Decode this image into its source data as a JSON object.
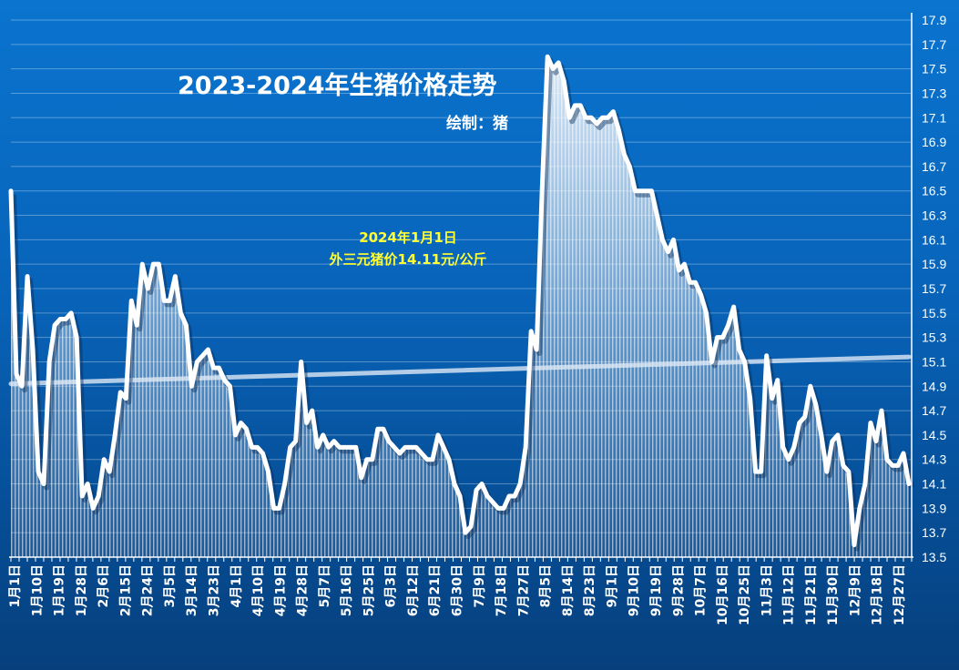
{
  "chart_data": {
    "type": "area",
    "title": "2023-2024年生猪价格走势",
    "subtitle": "绘制：猪",
    "annotation": {
      "line1": "2024年1月1日",
      "line2": "外三元猪价14.11元/公斤"
    },
    "y_ticks": [
      "13.5",
      "13.7",
      "13.9",
      "14.1",
      "14.3",
      "14.5",
      "14.7",
      "14.9",
      "15.1",
      "15.3",
      "15.5",
      "15.7",
      "15.9",
      "16.1",
      "16.3",
      "16.5",
      "16.7",
      "16.9",
      "17.1",
      "17.3",
      "17.5",
      "17.7",
      "17.9"
    ],
    "ylim": [
      13.5,
      17.9
    ],
    "x_ticks": [
      "1月1日",
      "1月10日",
      "1月19日",
      "1月28日",
      "2月6日",
      "2月15日",
      "2月24日",
      "3月5日",
      "3月14日",
      "3月23日",
      "4月1日",
      "4月10日",
      "4月19日",
      "4月28日",
      "5月7日",
      "5月16日",
      "5月25日",
      "6月3日",
      "6月12日",
      "6月21日",
      "6月30日",
      "7月9日",
      "7月18日",
      "7月27日",
      "8月5日",
      "8月14日",
      "8月23日",
      "9月1日",
      "9月10日",
      "9月19日",
      "9月28日",
      "10月7日",
      "10月16日",
      "10月25日",
      "11月3日",
      "11月12日",
      "11月21日",
      "11月30日",
      "12月9日",
      "12月18日",
      "12月27日"
    ],
    "series": [
      {
        "values": [
          16.5,
          15.0,
          14.9,
          15.8,
          15.2,
          14.2,
          14.1,
          15.1,
          15.4,
          15.45,
          15.45,
          15.5,
          15.3,
          14.0,
          14.1,
          13.9,
          14.0,
          14.3,
          14.2,
          14.5,
          14.85,
          14.8,
          15.6,
          15.4,
          15.9,
          15.7,
          15.9,
          15.9,
          15.6,
          15.6,
          15.8,
          15.5,
          15.4,
          14.9,
          15.1,
          15.15,
          15.2,
          15.05,
          15.05,
          14.95,
          14.9,
          14.5,
          14.6,
          14.55,
          14.4,
          14.4,
          14.35,
          14.2,
          13.9,
          13.9,
          14.1,
          14.4,
          14.45,
          15.1,
          14.6,
          14.7,
          14.4,
          14.5,
          14.4,
          14.45,
          14.4,
          14.4,
          14.4,
          14.4,
          14.15,
          14.3,
          14.3,
          14.55,
          14.55,
          14.45,
          14.4,
          14.35,
          14.4,
          14.4,
          14.4,
          14.35,
          14.3,
          14.3,
          14.5,
          14.4,
          14.3,
          14.1,
          14.0,
          13.7,
          13.75,
          14.05,
          14.1,
          14.0,
          13.95,
          13.9,
          13.9,
          14.0,
          14.0,
          14.1,
          14.4,
          15.35,
          15.2,
          16.5,
          17.6,
          17.5,
          17.55,
          17.4,
          17.1,
          17.2,
          17.2,
          17.1,
          17.1,
          17.05,
          17.1,
          17.1,
          17.15,
          17.0,
          16.8,
          16.7,
          16.5,
          16.5,
          16.5,
          16.5,
          16.3,
          16.1,
          16.0,
          16.1,
          15.85,
          15.9,
          15.75,
          15.75,
          15.65,
          15.5,
          15.1,
          15.3,
          15.3,
          15.4,
          15.55,
          15.2,
          15.1,
          14.8,
          14.2,
          14.2,
          15.15,
          14.8,
          14.95,
          14.4,
          14.3,
          14.4,
          14.6,
          14.65,
          14.9,
          14.75,
          14.5,
          14.2,
          14.45,
          14.5,
          14.25,
          14.2,
          13.6,
          13.9,
          14.1,
          14.6,
          14.45,
          14.7,
          14.3,
          14.25,
          14.25,
          14.35,
          14.1
        ]
      },
      {
        "values": [
          14.92,
          15.14
        ]
      }
    ],
    "grid": true
  }
}
